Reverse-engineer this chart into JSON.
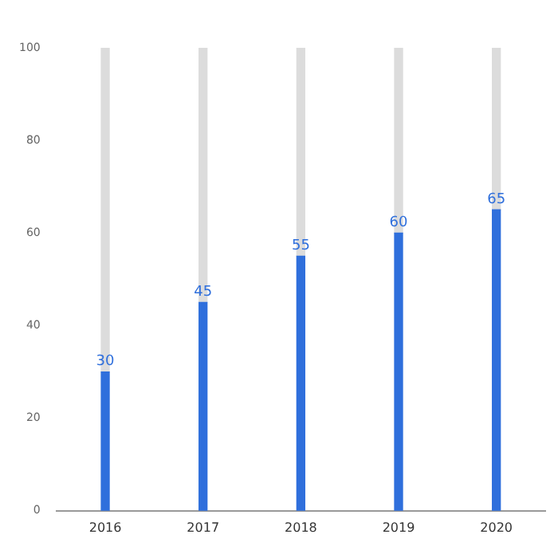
{
  "chart_data": {
    "type": "bar",
    "stacked": true,
    "categories": [
      "2016",
      "2017",
      "2018",
      "2019",
      "2020"
    ],
    "series": [
      {
        "color": "#2f6fdc",
        "values": [
          30,
          45,
          55,
          60,
          65
        ],
        "value_labels": [
          "30",
          "45",
          "55",
          "60",
          "65"
        ]
      },
      {
        "color": "#dcdcdc",
        "values": [
          70,
          55,
          45,
          40,
          35
        ]
      }
    ],
    "ylim": [
      0,
      100
    ],
    "yticks": [
      0,
      20,
      40,
      60,
      80,
      100
    ],
    "grid": false,
    "legend": false
  }
}
